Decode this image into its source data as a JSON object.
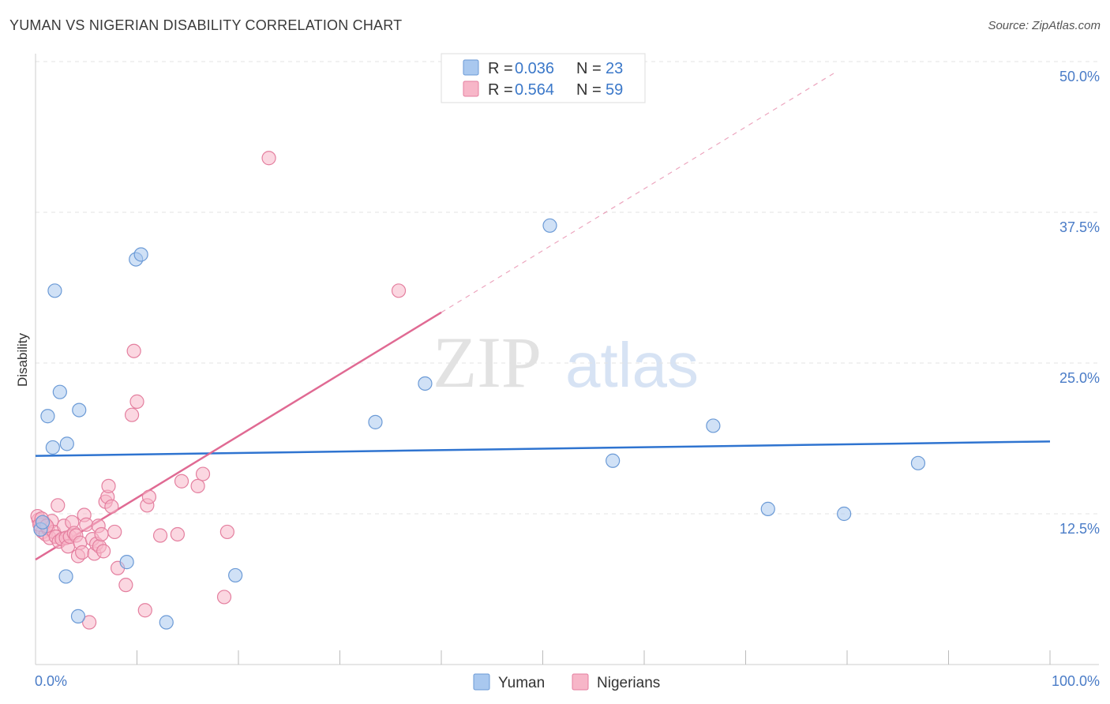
{
  "title": "YUMAN VS NIGERIAN DISABILITY CORRELATION CHART",
  "source": "Source: ZipAtlas.com",
  "watermark": {
    "zip": "ZIP",
    "atlas": "atlas"
  },
  "chart_data": {
    "type": "scatter",
    "title": "YUMAN VS NIGERIAN DISABILITY CORRELATION CHART",
    "xlabel": "",
    "ylabel": "Disability",
    "xlim": [
      0,
      100
    ],
    "ylim": [
      0,
      50
    ],
    "x_tick_labels": [
      "0.0%",
      "100.0%"
    ],
    "y_ticks": [
      12.5,
      25.0,
      37.5,
      50.0
    ],
    "y_tick_labels": [
      "12.5%",
      "25.0%",
      "37.5%",
      "50.0%"
    ],
    "grid": true,
    "legend_position": "top-center",
    "series": [
      {
        "name": "Yuman",
        "color": "#a9c8ef",
        "edge": "#6b9ad6",
        "line_color": "#2f74d0",
        "R": "0.036",
        "N": "23",
        "trend": {
          "x0": 0,
          "y0": 17.3,
          "x1": 100,
          "y1": 18.5,
          "dashed_to": 100
        },
        "points": [
          [
            0.5,
            11.2
          ],
          [
            0.7,
            11.8
          ],
          [
            1.2,
            20.6
          ],
          [
            1.7,
            18.0
          ],
          [
            1.9,
            31.0
          ],
          [
            2.4,
            22.6
          ],
          [
            3.1,
            18.3
          ],
          [
            3.0,
            7.3
          ],
          [
            4.3,
            21.1
          ],
          [
            4.2,
            4.0
          ],
          [
            9.9,
            33.6
          ],
          [
            10.4,
            34.0
          ],
          [
            9.0,
            8.5
          ],
          [
            12.9,
            3.5
          ],
          [
            19.7,
            7.4
          ],
          [
            33.5,
            20.1
          ],
          [
            38.4,
            23.3
          ],
          [
            50.7,
            36.4
          ],
          [
            56.9,
            16.9
          ],
          [
            66.8,
            19.8
          ],
          [
            72.2,
            12.9
          ],
          [
            79.7,
            12.5
          ],
          [
            87.0,
            16.7
          ]
        ]
      },
      {
        "name": "Nigerians",
        "color": "#f7b6c8",
        "edge": "#e47f9f",
        "line_color": "#e06a93",
        "R": "0.564",
        "N": "59",
        "trend": {
          "x0": 0,
          "y0": 8.7,
          "x1": 40.0,
          "y1": 29.2,
          "dashed_to": 79.0
        },
        "points": [
          [
            0.3,
            12.0
          ],
          [
            0.5,
            11.4
          ],
          [
            0.7,
            11.0
          ],
          [
            0.9,
            11.7
          ],
          [
            1.0,
            10.8
          ],
          [
            1.2,
            11.3
          ],
          [
            1.4,
            10.5
          ],
          [
            1.6,
            11.9
          ],
          [
            1.8,
            11.0
          ],
          [
            2.0,
            10.6
          ],
          [
            2.2,
            13.2
          ],
          [
            2.3,
            10.2
          ],
          [
            2.6,
            10.4
          ],
          [
            2.8,
            11.5
          ],
          [
            3.0,
            10.5
          ],
          [
            3.2,
            9.8
          ],
          [
            3.4,
            10.6
          ],
          [
            3.6,
            11.8
          ],
          [
            3.8,
            10.9
          ],
          [
            4.0,
            10.7
          ],
          [
            4.2,
            9.0
          ],
          [
            4.4,
            10.1
          ],
          [
            4.6,
            9.3
          ],
          [
            4.8,
            12.4
          ],
          [
            5.0,
            11.6
          ],
          [
            5.3,
            3.5
          ],
          [
            5.6,
            10.4
          ],
          [
            5.8,
            9.2
          ],
          [
            6.0,
            10.0
          ],
          [
            6.2,
            11.5
          ],
          [
            6.3,
            9.8
          ],
          [
            6.5,
            10.8
          ],
          [
            6.7,
            9.4
          ],
          [
            6.9,
            13.5
          ],
          [
            7.1,
            13.9
          ],
          [
            7.2,
            14.8
          ],
          [
            7.5,
            13.1
          ],
          [
            7.8,
            11.0
          ],
          [
            8.1,
            8.0
          ],
          [
            8.9,
            6.6
          ],
          [
            9.5,
            20.7
          ],
          [
            9.7,
            26.0
          ],
          [
            10.0,
            21.8
          ],
          [
            10.8,
            4.5
          ],
          [
            11.0,
            13.2
          ],
          [
            11.2,
            13.9
          ],
          [
            12.3,
            10.7
          ],
          [
            14.0,
            10.8
          ],
          [
            14.4,
            15.2
          ],
          [
            16.0,
            14.8
          ],
          [
            16.5,
            15.8
          ],
          [
            18.6,
            5.6
          ],
          [
            18.9,
            11.0
          ],
          [
            23.0,
            42.0
          ],
          [
            35.8,
            31.0
          ],
          [
            0.2,
            12.3
          ],
          [
            0.4,
            11.6
          ],
          [
            0.6,
            12.1
          ],
          [
            1.1,
            11.5
          ]
        ]
      }
    ]
  }
}
